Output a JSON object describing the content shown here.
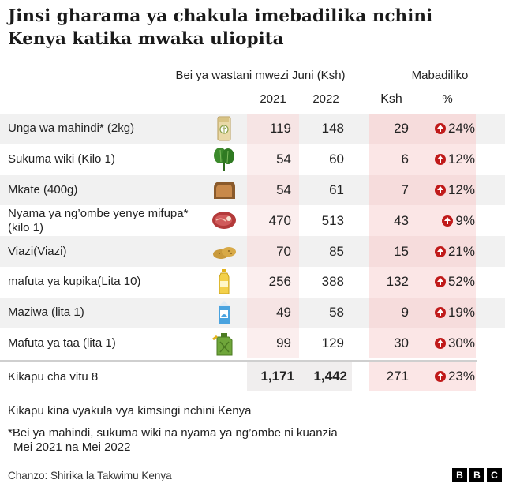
{
  "title_lines": [
    "Jinsi gharama ya chakula imebadilika nchini",
    "Kenya katika mwaka uliopita"
  ],
  "chart_data": {
    "type": "table",
    "header_group_price": "Bei ya wastani mwezi Juni (Ksh)",
    "header_group_change": "Mabadiliko",
    "columns": [
      "2021",
      "2022",
      "Ksh",
      "%"
    ],
    "rows": [
      {
        "name": "Unga wa mahindi* (2kg)",
        "icon": "flour-bag-icon",
        "v2021": "119",
        "v2022": "148",
        "ksh": "29",
        "pct": "24%"
      },
      {
        "name": "Sukuma wiki (Kilo 1)",
        "icon": "kale-icon",
        "v2021": "54",
        "v2022": "60",
        "ksh": "6",
        "pct": "12%"
      },
      {
        "name": "Mkate (400g)",
        "icon": "bread-icon",
        "v2021": "54",
        "v2022": "61",
        "ksh": "7",
        "pct": "12%"
      },
      {
        "name": "Nyama ya ng’ombe yenye mifupa* (kilo 1)",
        "icon": "meat-icon",
        "v2021": "470",
        "v2022": "513",
        "ksh": "43",
        "pct": "9%"
      },
      {
        "name": "Viazi(Viazi)",
        "icon": "potatoes-icon",
        "v2021": "70",
        "v2022": "85",
        "ksh": "15",
        "pct": "21%"
      },
      {
        "name": "mafuta ya kupika(Lita 10)",
        "icon": "oil-bottle-icon",
        "v2021": "256",
        "v2022": "388",
        "ksh": "132",
        "pct": "52%"
      },
      {
        "name": "Maziwa  (lita 1)",
        "icon": "milk-carton-icon",
        "v2021": "49",
        "v2022": "58",
        "ksh": "9",
        "pct": "19%"
      },
      {
        "name": "Mafuta ya taa (lita 1)",
        "icon": "jerrycan-icon",
        "v2021": "99",
        "v2022": "129",
        "ksh": "30",
        "pct": "30%"
      }
    ],
    "total": {
      "name": "Kikapu cha vitu 8",
      "v2021": "1,171",
      "v2022": "1,442",
      "ksh": "271",
      "pct": "23%"
    }
  },
  "notes": {
    "basket": "Kikapu kina vyakula vya kimsingi nchini Kenya",
    "footnote_lines": [
      "*Bei ya mahindi, sukuma wiki  na nyama ya ng’ombe ni kuanzia",
      "Mei 2021 na Mei 2022"
    ]
  },
  "source": "Chanzo: Shirika la Takwimu Kenya",
  "logo_letters": [
    "B",
    "B",
    "C"
  ],
  "colors": {
    "increase_red": "#c01a1a",
    "change_bg": "#fbe6e6",
    "row_shade": "#f1f1f1"
  }
}
